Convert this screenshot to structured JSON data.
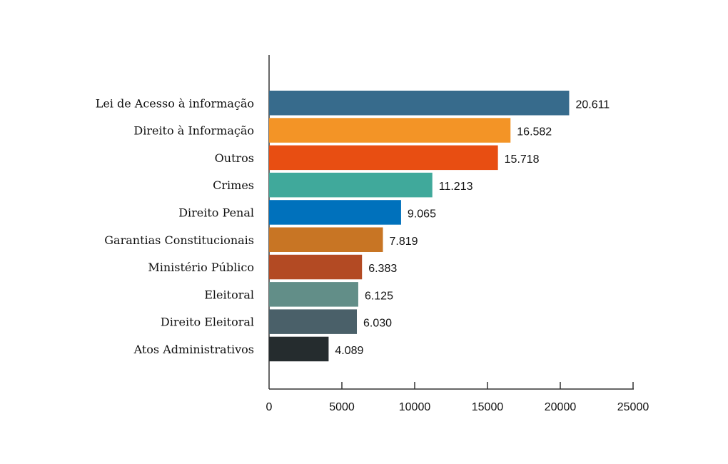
{
  "chart_data": {
    "type": "bar",
    "orientation": "horizontal",
    "categories": [
      "Lei de Acesso à informação",
      "Direito à Informação",
      "Outros",
      "Crimes",
      "Direito Penal",
      "Garantias Constitucionais",
      "Ministério Público",
      "Eleitoral",
      "Direito Eleitoral",
      "Atos Administrativos"
    ],
    "values": [
      20611,
      16582,
      15718,
      11213,
      9065,
      7819,
      6383,
      6125,
      6030,
      4089
    ],
    "value_labels": [
      "20.611",
      "16.582",
      "15.718",
      "11.213",
      "9.065",
      "7.819",
      "6.383",
      "6.125",
      "6.030",
      "4.089"
    ],
    "colors": [
      "#376b8c",
      "#f39426",
      "#e84e12",
      "#40a99b",
      "#0071bc",
      "#c87524",
      "#b34a23",
      "#628e88",
      "#4a6069",
      "#252c2e"
    ],
    "xlim": [
      0,
      25000
    ],
    "xticks": [
      0,
      5000,
      10000,
      15000,
      20000,
      25000
    ],
    "xtick_labels": [
      "0",
      "5000",
      "10000",
      "15000",
      "20000",
      "25000"
    ],
    "grid": false,
    "title": "",
    "xlabel": "",
    "ylabel": ""
  }
}
